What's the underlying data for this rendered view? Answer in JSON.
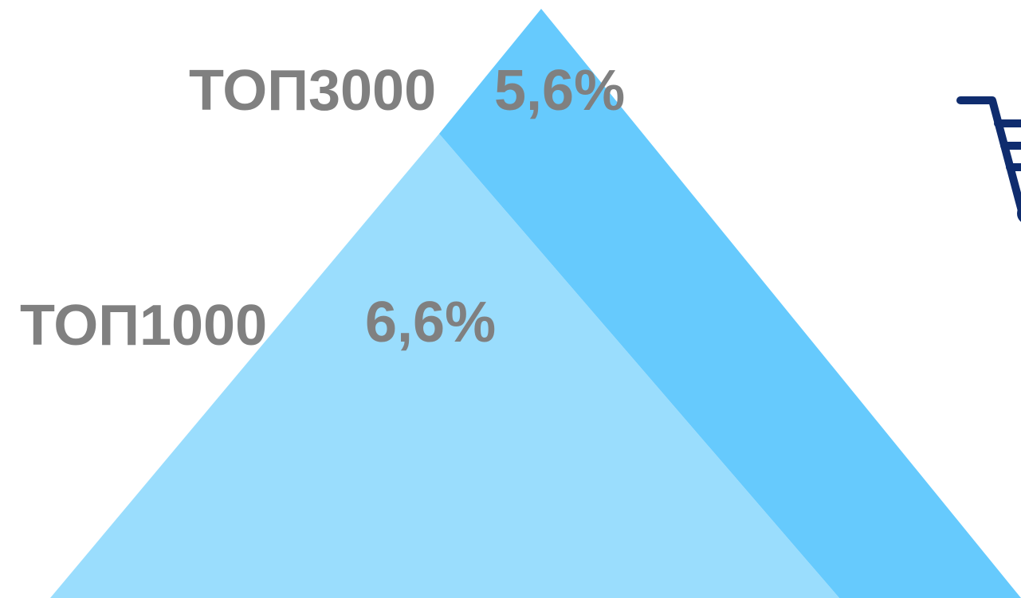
{
  "colors": {
    "background": "#ffffff",
    "outer_tier": "#66CAFD",
    "inner_tier": "#9ADDFD",
    "label_text": "#808080",
    "cart_icon": "#0F2C6E"
  },
  "tiers": {
    "top3000": {
      "label": "ТОП3000",
      "value": "5,6%"
    },
    "top1000": {
      "label": "ТОП1000",
      "value": "6,6%"
    }
  },
  "icons": {
    "cart": "shopping-cart-icon"
  }
}
